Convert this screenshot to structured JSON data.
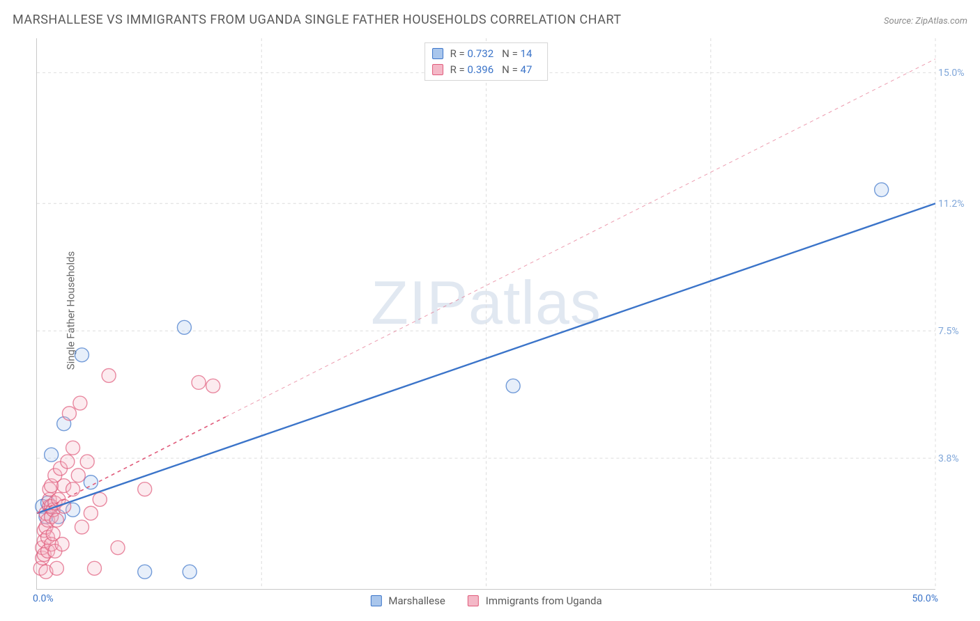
{
  "title": "MARSHALLESE VS IMMIGRANTS FROM UGANDA SINGLE FATHER HOUSEHOLDS CORRELATION CHART",
  "source": "Source: ZipAtlas.com",
  "ylabel": "Single Father Households",
  "watermark_a": "ZIP",
  "watermark_b": "atlas",
  "chart": {
    "type": "scatter",
    "background_color": "#ffffff",
    "grid_color": "#dcdcdc",
    "axis_color": "#c8c8c8",
    "xlim": [
      0,
      50
    ],
    "ylim": [
      0,
      16
    ],
    "ygrid_values": [
      3.8,
      7.5,
      11.2,
      15.0
    ],
    "ytick_labels": [
      "3.8%",
      "7.5%",
      "11.2%",
      "15.0%"
    ],
    "xgrid_values": [
      12.5,
      25,
      37.5,
      50
    ],
    "origin_label": "0.0%",
    "xmax_label": "50.0%",
    "ytick_color": "#7fa6d9",
    "marker_radius": 10,
    "marker_stroke_width": 1.4,
    "marker_fill_opacity": 0.28,
    "series": [
      {
        "name": "Marshallese",
        "color": "#3b74c9",
        "fill": "#a9c6ec",
        "r": 0.732,
        "n": 14,
        "trend": {
          "x1": 0,
          "y1": 2.2,
          "x2": 50,
          "y2": 11.2,
          "dash": "none",
          "width": 2.4,
          "ext_x2": 50,
          "ext_y2": 11.2
        },
        "points": [
          [
            0.3,
            2.4
          ],
          [
            0.5,
            2.1
          ],
          [
            0.6,
            2.5
          ],
          [
            0.8,
            3.9
          ],
          [
            1.2,
            2.1
          ],
          [
            1.5,
            4.8
          ],
          [
            2.0,
            2.3
          ],
          [
            2.5,
            6.8
          ],
          [
            3.0,
            3.1
          ],
          [
            6.0,
            0.5
          ],
          [
            8.2,
            7.6
          ],
          [
            8.5,
            0.5
          ],
          [
            26.5,
            5.9
          ],
          [
            47.0,
            11.6
          ]
        ]
      },
      {
        "name": "Immigrants from Uganda",
        "color": "#e05a7a",
        "fill": "#f4b8c7",
        "r": 0.396,
        "n": 47,
        "trend": {
          "x1": 0,
          "y1": 2.2,
          "x2": 10.5,
          "y2": 5.0,
          "dash": "5,5",
          "width": 1.6,
          "ext_x2": 50,
          "ext_y2": 15.4
        },
        "points": [
          [
            0.2,
            0.6
          ],
          [
            0.3,
            0.9
          ],
          [
            0.3,
            1.2
          ],
          [
            0.4,
            1.0
          ],
          [
            0.4,
            1.4
          ],
          [
            0.4,
            1.7
          ],
          [
            0.5,
            0.5
          ],
          [
            0.5,
            1.8
          ],
          [
            0.5,
            2.2
          ],
          [
            0.6,
            1.1
          ],
          [
            0.6,
            1.5
          ],
          [
            0.6,
            2.0
          ],
          [
            0.7,
            2.4
          ],
          [
            0.7,
            2.6
          ],
          [
            0.7,
            2.9
          ],
          [
            0.8,
            1.3
          ],
          [
            0.8,
            2.1
          ],
          [
            0.8,
            2.4
          ],
          [
            0.8,
            3.0
          ],
          [
            0.9,
            1.6
          ],
          [
            0.9,
            2.3
          ],
          [
            1.0,
            1.1
          ],
          [
            1.0,
            2.5
          ],
          [
            1.0,
            3.3
          ],
          [
            1.1,
            0.6
          ],
          [
            1.1,
            2.0
          ],
          [
            1.2,
            2.6
          ],
          [
            1.3,
            3.5
          ],
          [
            1.4,
            1.3
          ],
          [
            1.5,
            2.4
          ],
          [
            1.5,
            3.0
          ],
          [
            1.7,
            3.7
          ],
          [
            1.8,
            5.1
          ],
          [
            2.0,
            2.9
          ],
          [
            2.0,
            4.1
          ],
          [
            2.3,
            3.3
          ],
          [
            2.4,
            5.4
          ],
          [
            2.5,
            1.8
          ],
          [
            2.8,
            3.7
          ],
          [
            3.0,
            2.2
          ],
          [
            3.2,
            0.6
          ],
          [
            3.5,
            2.6
          ],
          [
            4.0,
            6.2
          ],
          [
            4.5,
            1.2
          ],
          [
            6.0,
            2.9
          ],
          [
            9.0,
            6.0
          ],
          [
            9.8,
            5.9
          ]
        ]
      }
    ]
  },
  "legend_bottom": {
    "items": [
      "Marshallese",
      "Immigrants from Uganda"
    ]
  }
}
